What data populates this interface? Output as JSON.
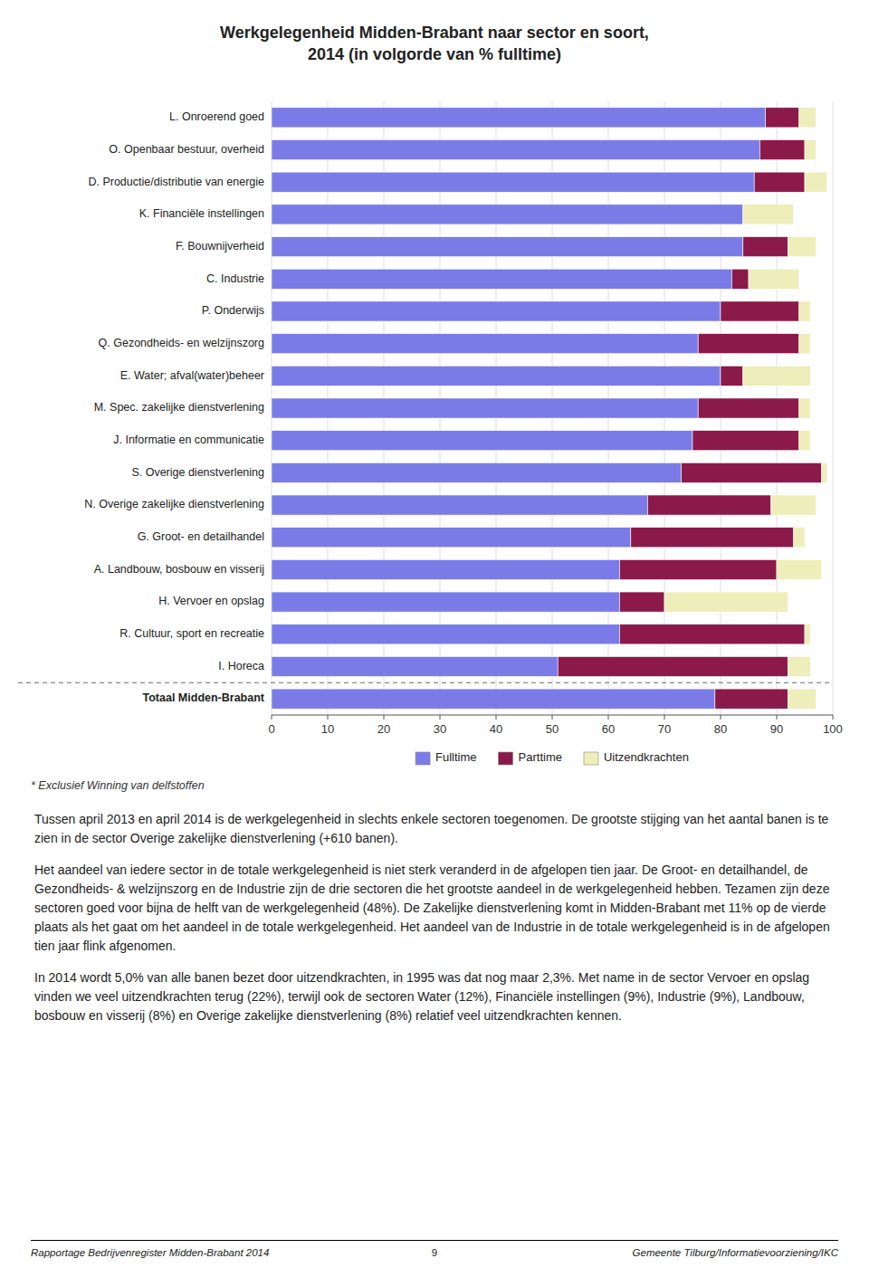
{
  "chart_data": {
    "type": "bar",
    "orientation": "horizontal",
    "stacked": true,
    "title": "Werkgelegenheid Midden-Brabant naar sector en soort,\n2014 (in volgorde van % fulltime)",
    "categories": [
      "L. Onroerend goed",
      "O. Openbaar bestuur, overheid",
      "D. Productie/distributie van energie",
      "K. Financiële instellingen",
      "F. Bouwnijverheid",
      "C. Industrie",
      "P. Onderwijs",
      "Q. Gezondheids- en welzijnszorg",
      "E. Water; afval(water)beheer",
      "M. Spec. zakelijke dienstverlening",
      "J. Informatie en communicatie",
      "S. Overige dienstverlening",
      "N. Overige zakelijke dienstverlening",
      "G. Groot- en detailhandel",
      "A. Landbouw, bosbouw en visserij",
      "H. Vervoer en opslag",
      "R. Cultuur, sport en recreatie",
      "I. Horeca",
      "Totaal Midden-Brabant"
    ],
    "series": [
      {
        "name": "Fulltime",
        "color": "#7B7BE8",
        "values": [
          88,
          87,
          86,
          84,
          84,
          82,
          80,
          76,
          80,
          76,
          75,
          73,
          67,
          64,
          62,
          62,
          62,
          51,
          79
        ]
      },
      {
        "name": "Parttime",
        "color": "#8B1A4A",
        "values": [
          6,
          8,
          9,
          0,
          8,
          3,
          14,
          18,
          4,
          18,
          19,
          25,
          22,
          29,
          28,
          8,
          33,
          41,
          13
        ]
      },
      {
        "name": "Uitzendkrachten",
        "color": "#EEEEBB",
        "values": [
          3,
          2,
          4,
          9,
          5,
          9,
          2,
          2,
          12,
          2,
          2,
          1,
          8,
          2,
          8,
          22,
          1,
          4,
          5
        ]
      }
    ],
    "xlim": [
      0,
      100
    ],
    "xticks": [
      0,
      10,
      20,
      30,
      40,
      50,
      60,
      70,
      80,
      90,
      100
    ],
    "grid": true,
    "legend": "bottom",
    "annotations": [
      "* Exclusief Winning van delfstoffen"
    ]
  },
  "text": {
    "paragraphs": [
      "Tussen april 2013 en april 2014 is de werkgelegenheid in slechts enkele sectoren toegenomen. De grootste stijging van het aantal banen is te zien in de sector Overige zakelijke dienstverlening (+610 banen).",
      "Het aandeel van iedere sector in de totale werkgelegenheid is niet sterk veranderd in de afgelopen tien jaar. De Groot- en detailhandel, de Gezondheids- & welzijnszorg en de Industrie zijn de drie sectoren die het grootste aandeel in de werkgelegenheid hebben. Tezamen zijn deze sectoren goed voor bijna de helft van de werkgelegenheid (48%). De Zakelijke dienstverlening komt in Midden-Brabant met 11% op de vierde plaats als het gaat om het aandeel in de totale werkgelegenheid. Het aandeel van de Industrie in de totale werkgelegenheid is in de afgelopen tien jaar flink afgenomen.",
      "In 2014 wordt 5,0% van alle banen bezet door uitzendkrachten, in 1995 was dat nog maar 2,3%. Met name in de sector Vervoer en opslag vinden we veel uitzendkrachten terug (22%), terwijl ook de sectoren Water (12%), Financiële instellingen (9%), Industrie (9%), Landbouw, bosbouw en visserij (8%) en Overige zakelijke dienstverlening (8%) relatief veel uitzendkrachten kennen."
    ],
    "footer_left": "Rapportage Bedrijvenregister Midden-Brabant 2014",
    "footer_center": "9",
    "footer_right": "Gemeente Tilburg/Informatievoorziening/IKC"
  }
}
